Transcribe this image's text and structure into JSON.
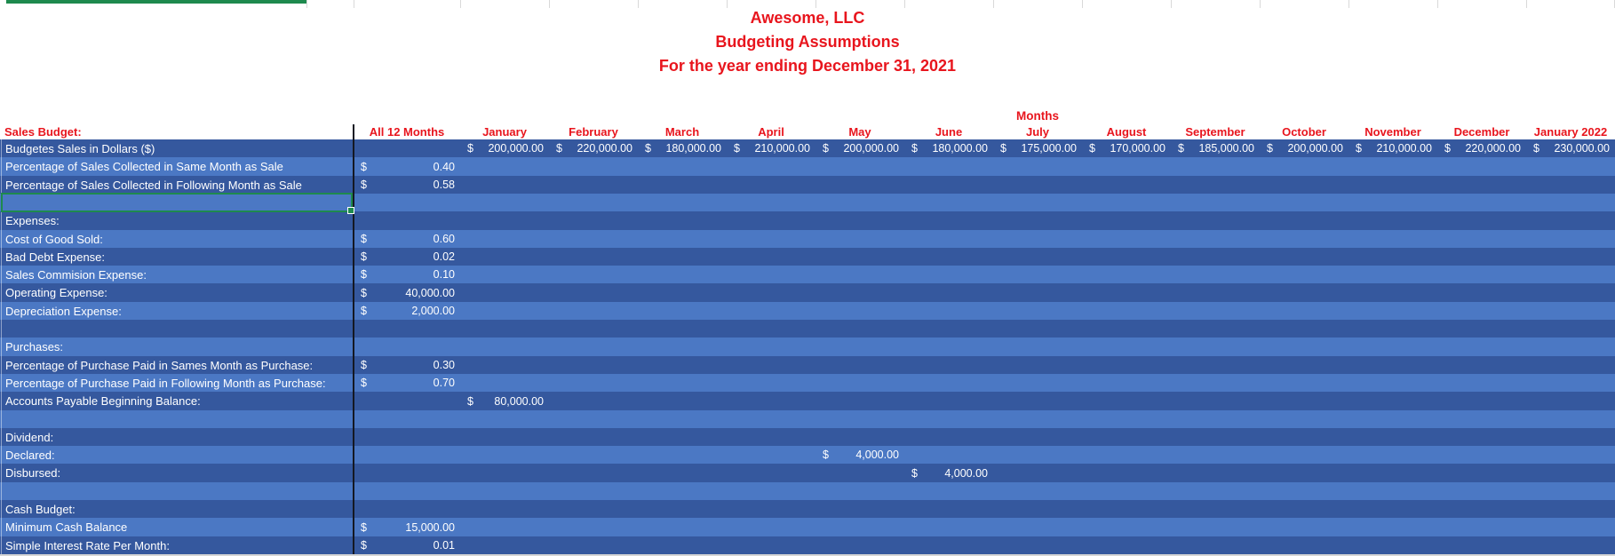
{
  "titles": [
    "Awesome, LLC",
    "Budgeting Assumptions",
    "For the year ending December 31, 2021"
  ],
  "months_label": "Months",
  "sales_budget_label": "Sales Budget:",
  "currency_symbol": "$",
  "columns": [
    {
      "key": "all12",
      "label": "All 12 Months"
    },
    {
      "key": "jan",
      "label": "January"
    },
    {
      "key": "feb",
      "label": "February"
    },
    {
      "key": "mar",
      "label": "March"
    },
    {
      "key": "apr",
      "label": "April"
    },
    {
      "key": "may",
      "label": "May"
    },
    {
      "key": "jun",
      "label": "June"
    },
    {
      "key": "jul",
      "label": "July"
    },
    {
      "key": "aug",
      "label": "August"
    },
    {
      "key": "sep",
      "label": "September"
    },
    {
      "key": "oct",
      "label": "October"
    },
    {
      "key": "nov",
      "label": "November"
    },
    {
      "key": "dec",
      "label": "December"
    },
    {
      "key": "jan22",
      "label": "January 2022"
    }
  ],
  "rows": [
    {
      "label": "Budgetes Sales in Dollars ($)",
      "values": {
        "jan": "200,000.00",
        "feb": "220,000.00",
        "mar": "180,000.00",
        "apr": "210,000.00",
        "may": "200,000.00",
        "jun": "180,000.00",
        "jul": "175,000.00",
        "aug": "170,000.00",
        "sep": "185,000.00",
        "oct": "200,000.00",
        "nov": "210,000.00",
        "dec": "220,000.00",
        "jan22": "230,000.00"
      }
    },
    {
      "label": "Percentage of Sales Collected in Same Month as Sale",
      "values": {
        "all12": "0.40"
      }
    },
    {
      "label": "Percentage of Sales Collected in Following Month as Sale",
      "values": {
        "all12": "0.58"
      }
    },
    {
      "label": "",
      "selected": true,
      "values": {}
    },
    {
      "label": "Expenses:",
      "values": {}
    },
    {
      "label": "Cost of Good Sold:",
      "values": {
        "all12": "0.60"
      }
    },
    {
      "label": "Bad Debt Expense:",
      "values": {
        "all12": "0.02"
      }
    },
    {
      "label": "Sales Commision Expense:",
      "values": {
        "all12": "0.10"
      }
    },
    {
      "label": "Operating Expense:",
      "values": {
        "all12": "40,000.00"
      }
    },
    {
      "label": "Depreciation Expense:",
      "values": {
        "all12": "2,000.00"
      }
    },
    {
      "label": "",
      "values": {}
    },
    {
      "label": "Purchases:",
      "values": {}
    },
    {
      "label": "Percentage of Purchase Paid in Sames Month as Purchase:",
      "values": {
        "all12": "0.30"
      }
    },
    {
      "label": "Percentage of Purchase Paid in Following Month as Purchase:",
      "values": {
        "all12": "0.70"
      }
    },
    {
      "label": "Accounts Payable Beginning Balance:",
      "values": {
        "jan": "80,000.00"
      }
    },
    {
      "label": "",
      "values": {}
    },
    {
      "label": "Dividend:",
      "values": {}
    },
    {
      "label": "Declared:",
      "values": {
        "may": "4,000.00"
      }
    },
    {
      "label": "Disbursed:",
      "values": {
        "jun": "4,000.00"
      }
    },
    {
      "label": "",
      "values": {}
    },
    {
      "label": "Cash Budget:",
      "values": {}
    },
    {
      "label": "Minimum Cash Balance",
      "values": {
        "all12": "15,000.00"
      }
    },
    {
      "label": "Simple Interest Rate Per Month:",
      "values": {
        "all12": "0.01"
      }
    }
  ],
  "colors": {
    "band_dark": "#35589e",
    "band_light": "#4b78c4",
    "header_red": "#e8151d",
    "selection_green": "#1e8a4e",
    "divider_black": "#141823",
    "cell_text": "#ffffff"
  }
}
